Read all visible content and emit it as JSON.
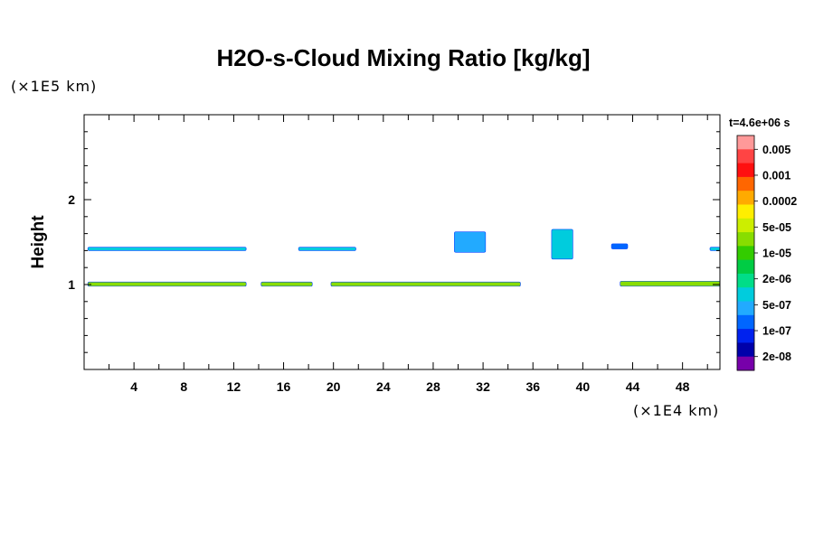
{
  "chart_data": {
    "type": "contour",
    "title": "H2O-s-Cloud Mixing Ratio [kg/kg]",
    "ylabel": "Height",
    "y_unit": "(×1E5 km)",
    "x_unit": "(×1E4 km)",
    "time_label": "t=4.6e+06 s",
    "xlim": [
      0,
      51
    ],
    "ylim": [
      0,
      3
    ],
    "x_ticks": [
      "4",
      "8",
      "12",
      "16",
      "20",
      "24",
      "28",
      "32",
      "36",
      "40",
      "44",
      "48"
    ],
    "x_tick_values": [
      4,
      8,
      12,
      16,
      20,
      24,
      28,
      32,
      36,
      40,
      44,
      48
    ],
    "y_ticks": [
      "1",
      "2"
    ],
    "y_tick_values": [
      1,
      2
    ],
    "colorbar": {
      "labels": [
        "0.005",
        "0.001",
        "0.0002",
        "5e-05",
        "1e-05",
        "2e-06",
        "5e-07",
        "1e-07",
        "2e-08"
      ],
      "colors": [
        "#ff9999",
        "#ff4444",
        "#ff1010",
        "#ff6600",
        "#ffaa00",
        "#ffee00",
        "#ccee00",
        "#88dd00",
        "#33cc00",
        "#00cc44",
        "#00dd88",
        "#00ccdd",
        "#22aaff",
        "#0066ff",
        "#0022ee",
        "#0000aa",
        "#7700aa"
      ]
    },
    "cloud_regions": [
      {
        "x": [
          0.3,
          13.0
        ],
        "y": [
          0.98,
          1.03
        ],
        "color": "#88dd00"
      },
      {
        "x": [
          14.2,
          18.3
        ],
        "y": [
          0.98,
          1.03
        ],
        "color": "#88dd00"
      },
      {
        "x": [
          19.8,
          35.0
        ],
        "y": [
          0.98,
          1.03
        ],
        "color": "#88dd00"
      },
      {
        "x": [
          43.0,
          51.0
        ],
        "y": [
          0.98,
          1.04
        ],
        "color": "#88dd00"
      },
      {
        "x": [
          0.3,
          13.0
        ],
        "y": [
          1.4,
          1.44
        ],
        "color": "#00ccdd"
      },
      {
        "x": [
          17.2,
          21.8
        ],
        "y": [
          1.4,
          1.44
        ],
        "color": "#00ccdd"
      },
      {
        "x": [
          29.7,
          32.2
        ],
        "y": [
          1.38,
          1.62
        ],
        "color": "#22aaff"
      },
      {
        "x": [
          37.5,
          39.2
        ],
        "y": [
          1.3,
          1.65
        ],
        "color": "#00ccdd"
      },
      {
        "x": [
          42.3,
          43.6
        ],
        "y": [
          1.42,
          1.48
        ],
        "color": "#0066ff"
      },
      {
        "x": [
          50.2,
          51.0
        ],
        "y": [
          1.4,
          1.44
        ],
        "color": "#00ccdd"
      }
    ]
  }
}
